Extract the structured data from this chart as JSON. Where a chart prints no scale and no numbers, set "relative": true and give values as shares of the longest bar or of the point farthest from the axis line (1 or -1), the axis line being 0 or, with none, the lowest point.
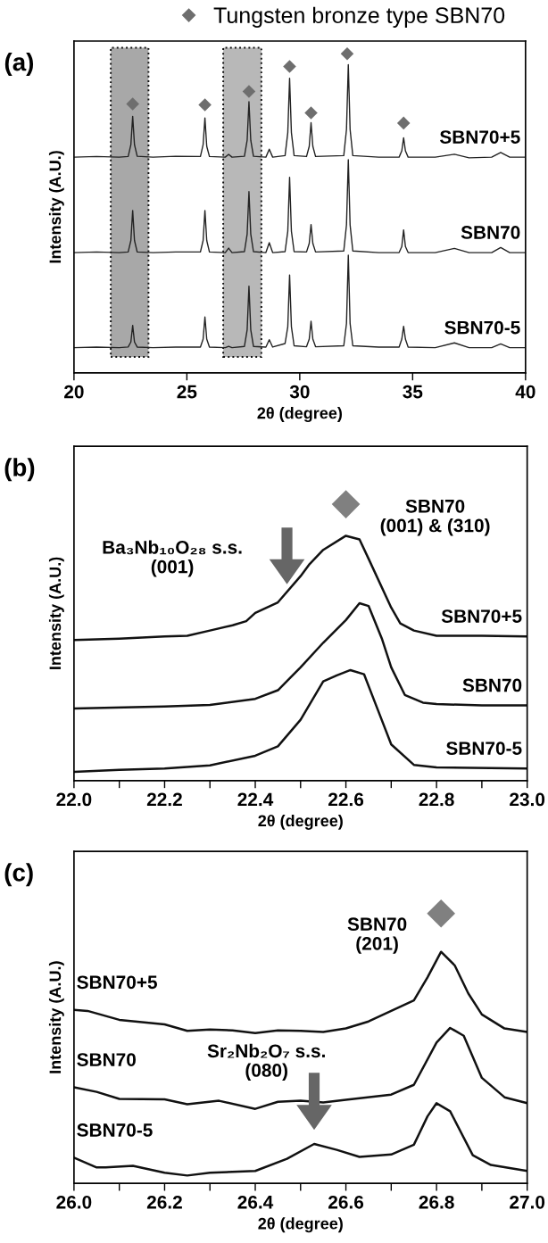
{
  "chart_data": [
    {
      "type": "line",
      "title": "(a)",
      "xlabel": "2θ (degree)",
      "ylabel": "Intensity (A.U.)",
      "relative": true,
      "legend": "top",
      "tick_labels": "x",
      "xlim": [
        20,
        40
      ],
      "xticks": [
        20,
        25,
        30,
        35,
        40
      ],
      "x": [
        20,
        21,
        22,
        22.4,
        22.52,
        22.6,
        22.68,
        22.8,
        23.5,
        24.5,
        25.6,
        25.72,
        25.8,
        25.88,
        26.0,
        26.7,
        26.85,
        27.0,
        27.55,
        27.67,
        27.75,
        27.83,
        27.95,
        28.5,
        28.65,
        28.8,
        29.35,
        29.47,
        29.55,
        29.63,
        29.75,
        30.3,
        30.42,
        30.5,
        30.58,
        30.7,
        31.95,
        32.07,
        32.15,
        32.23,
        32.35,
        33.5,
        34.4,
        34.52,
        34.6,
        34.68,
        34.8,
        36.0,
        36.85,
        37.5,
        38.5,
        38.9,
        39.3,
        40
      ],
      "bands": [
        {
          "axis": "x",
          "from": 21.63,
          "to": 23.3,
          "color": "#a8a8a8"
        },
        {
          "axis": "x",
          "from": 26.61,
          "to": 28.3,
          "color": "#b8b8b8"
        }
      ],
      "series": [
        {
          "name": "SBN70+5",
          "color": "#222222",
          "values": [
            0.676,
            0.678,
            0.676,
            0.678,
            0.715,
            0.804,
            0.715,
            0.679,
            0.676,
            0.679,
            0.678,
            0.715,
            0.799,
            0.71,
            0.678,
            0.676,
            0.685,
            0.676,
            0.679,
            0.729,
            0.85,
            0.729,
            0.679,
            0.676,
            0.701,
            0.676,
            0.681,
            0.753,
            0.923,
            0.753,
            0.681,
            0.678,
            0.71,
            0.784,
            0.71,
            0.678,
            0.681,
            0.763,
            0.966,
            0.763,
            0.681,
            0.676,
            0.676,
            0.696,
            0.737,
            0.696,
            0.676,
            0.676,
            0.685,
            0.674,
            0.676,
            0.691,
            0.676,
            0.676
          ]
        },
        {
          "name": "SBN70",
          "color": "#222222",
          "values": [
            0.377,
            0.379,
            0.377,
            0.379,
            0.415,
            0.509,
            0.415,
            0.379,
            0.377,
            0.379,
            0.379,
            0.415,
            0.509,
            0.415,
            0.379,
            0.377,
            0.391,
            0.377,
            0.38,
            0.435,
            0.568,
            0.435,
            0.38,
            0.377,
            0.408,
            0.377,
            0.38,
            0.444,
            0.613,
            0.444,
            0.38,
            0.379,
            0.406,
            0.465,
            0.406,
            0.379,
            0.382,
            0.464,
            0.668,
            0.464,
            0.382,
            0.377,
            0.377,
            0.396,
            0.448,
            0.396,
            0.377,
            0.377,
            0.39,
            0.377,
            0.377,
            0.393,
            0.377,
            0.377
          ]
        },
        {
          "name": "SBN70-5",
          "color": "#222222",
          "values": [
            0.079,
            0.081,
            0.079,
            0.081,
            0.097,
            0.149,
            0.097,
            0.081,
            0.079,
            0.081,
            0.081,
            0.106,
            0.175,
            0.106,
            0.081,
            0.079,
            0.083,
            0.079,
            0.083,
            0.135,
            0.272,
            0.135,
            0.083,
            0.081,
            0.104,
            0.081,
            0.092,
            0.145,
            0.307,
            0.145,
            0.085,
            0.082,
            0.106,
            0.162,
            0.106,
            0.082,
            0.085,
            0.155,
            0.369,
            0.155,
            0.085,
            0.081,
            0.081,
            0.106,
            0.146,
            0.106,
            0.081,
            0.079,
            0.094,
            0.079,
            0.079,
            0.091,
            0.079,
            0.079
          ]
        },
        {
          "name": "Tungsten bronze type SBN70",
          "type": "scatter",
          "marker": "diamond",
          "color": "#6e6e6e",
          "x": [
            22.6,
            25.8,
            27.75,
            29.55,
            30.5,
            32.1,
            34.6
          ],
          "values": [
            0.843,
            0.84,
            0.882,
            0.96,
            0.815,
            1.0,
            0.783
          ]
        }
      ]
    },
    {
      "type": "line",
      "title": "(b)",
      "xlabel": "2θ (degree)",
      "ylabel": "Intensity (A.U.)",
      "relative": true,
      "tick_labels": "x",
      "xlim": [
        22.0,
        23.0
      ],
      "xticks": [
        {
          "value": 22.0,
          "label": "22.0"
        },
        {
          "value": 22.1,
          "label": null
        },
        {
          "value": 22.2,
          "label": "22.2"
        },
        {
          "value": 22.3,
          "label": null
        },
        {
          "value": 22.4,
          "label": "22.4"
        },
        {
          "value": 22.5,
          "label": null
        },
        {
          "value": 22.6,
          "label": "22.6"
        },
        {
          "value": 22.7,
          "label": null
        },
        {
          "value": 22.8,
          "label": "22.8"
        },
        {
          "value": 22.9,
          "label": null
        },
        {
          "value": 23.0,
          "label": "23.0"
        }
      ],
      "annotations": [
        "SBN70\n(001) & (310)",
        "Ba₃Nb₁₀O₂₈ s.s.\n(001)"
      ],
      "series": [
        {
          "name": "SBN70+5",
          "color": "#111111",
          "x": [
            22.0,
            22.1,
            22.2,
            22.25,
            22.3,
            22.35,
            22.38,
            22.4,
            22.45,
            22.5,
            22.52,
            22.55,
            22.6,
            22.63,
            22.65,
            22.7,
            22.72,
            22.75,
            22.8,
            22.9,
            23.0
          ],
          "values": [
            0.509,
            0.514,
            0.522,
            0.524,
            0.543,
            0.562,
            0.577,
            0.607,
            0.645,
            0.74,
            0.784,
            0.835,
            0.886,
            0.873,
            0.803,
            0.626,
            0.569,
            0.543,
            0.524,
            0.524,
            0.522
          ]
        },
        {
          "name": "SBN70",
          "color": "#111111",
          "x": [
            22.0,
            22.2,
            22.3,
            22.4,
            22.45,
            22.5,
            22.55,
            22.6,
            22.63,
            22.65,
            22.68,
            22.7,
            22.73,
            22.77,
            22.8,
            22.9,
            23.0
          ],
          "values": [
            0.261,
            0.268,
            0.274,
            0.296,
            0.327,
            0.41,
            0.499,
            0.581,
            0.642,
            0.632,
            0.511,
            0.41,
            0.31,
            0.282,
            0.277,
            0.272,
            0.272
          ]
        },
        {
          "name": "SBN70-5",
          "color": "#111111",
          "x": [
            22.0,
            22.1,
            22.2,
            22.3,
            22.4,
            22.45,
            22.5,
            22.55,
            22.58,
            22.61,
            22.64,
            22.67,
            22.7,
            22.75,
            22.8,
            23.0
          ],
          "values": [
            0.032,
            0.039,
            0.044,
            0.055,
            0.09,
            0.124,
            0.22,
            0.359,
            0.381,
            0.4,
            0.385,
            0.258,
            0.131,
            0.057,
            0.048,
            0.044
          ]
        },
        {
          "type": "scatter",
          "marker": "diamond",
          "color": "#808080",
          "x": [
            22.6
          ],
          "values": [
            1.0
          ]
        }
      ]
    },
    {
      "type": "line",
      "title": "(c)",
      "xlabel": "2θ (degree)",
      "ylabel": "Intensity (A.U.)",
      "relative": true,
      "tick_labels": "x",
      "xlim": [
        26.0,
        27.0
      ],
      "xticks": [
        {
          "value": 26.0,
          "label": "26.0"
        },
        {
          "value": 26.1,
          "label": null
        },
        {
          "value": 26.2,
          "label": "26.2"
        },
        {
          "value": 26.3,
          "label": null
        },
        {
          "value": 26.4,
          "label": "26.4"
        },
        {
          "value": 26.5,
          "label": null
        },
        {
          "value": 26.6,
          "label": "26.6"
        },
        {
          "value": 26.7,
          "label": null
        },
        {
          "value": 26.8,
          "label": "26.8"
        },
        {
          "value": 26.9,
          "label": null
        },
        {
          "value": 27.0,
          "label": "27.0"
        }
      ],
      "annotations": [
        "SBN70\n(201)",
        "Sr₂Nb₂O₇ s.s.\n(080)"
      ],
      "series": [
        {
          "name": "SBN70+5",
          "color": "#111111",
          "x": [
            26.0,
            26.03,
            26.1,
            26.15,
            26.2,
            26.25,
            26.3,
            26.35,
            26.4,
            26.45,
            26.5,
            26.55,
            26.6,
            26.65,
            26.7,
            26.75,
            26.78,
            26.81,
            26.84,
            26.87,
            26.9,
            26.95,
            27.0
          ],
          "values": [
            0.643,
            0.639,
            0.606,
            0.597,
            0.589,
            0.565,
            0.57,
            0.567,
            0.557,
            0.567,
            0.565,
            0.561,
            0.574,
            0.6,
            0.639,
            0.678,
            0.763,
            0.858,
            0.808,
            0.704,
            0.626,
            0.574,
            0.561
          ]
        },
        {
          "name": "SBN70",
          "color": "#111111",
          "x": [
            26.0,
            26.05,
            26.1,
            26.2,
            26.25,
            26.32,
            26.4,
            26.45,
            26.5,
            26.55,
            26.6,
            26.7,
            26.75,
            26.8,
            26.83,
            26.86,
            26.9,
            26.95,
            27.0
          ],
          "values": [
            0.356,
            0.339,
            0.313,
            0.311,
            0.293,
            0.306,
            0.276,
            0.302,
            0.306,
            0.3,
            0.31,
            0.329,
            0.365,
            0.522,
            0.576,
            0.547,
            0.391,
            0.319,
            0.297
          ]
        },
        {
          "name": "SBN70-5",
          "color": "#111111",
          "x": [
            26.0,
            26.05,
            26.07,
            26.13,
            26.2,
            26.25,
            26.3,
            26.4,
            26.47,
            26.53,
            26.58,
            26.63,
            26.7,
            26.75,
            26.78,
            26.8,
            26.83,
            26.88,
            26.92,
            27.0
          ],
          "values": [
            0.095,
            0.059,
            0.059,
            0.065,
            0.039,
            0.029,
            0.039,
            0.046,
            0.091,
            0.146,
            0.124,
            0.098,
            0.107,
            0.143,
            0.248,
            0.297,
            0.267,
            0.104,
            0.068,
            0.046
          ]
        },
        {
          "type": "scatter",
          "marker": "diamond",
          "color": "#808080",
          "x": [
            26.81
          ],
          "values": [
            1.0
          ]
        }
      ]
    }
  ]
}
